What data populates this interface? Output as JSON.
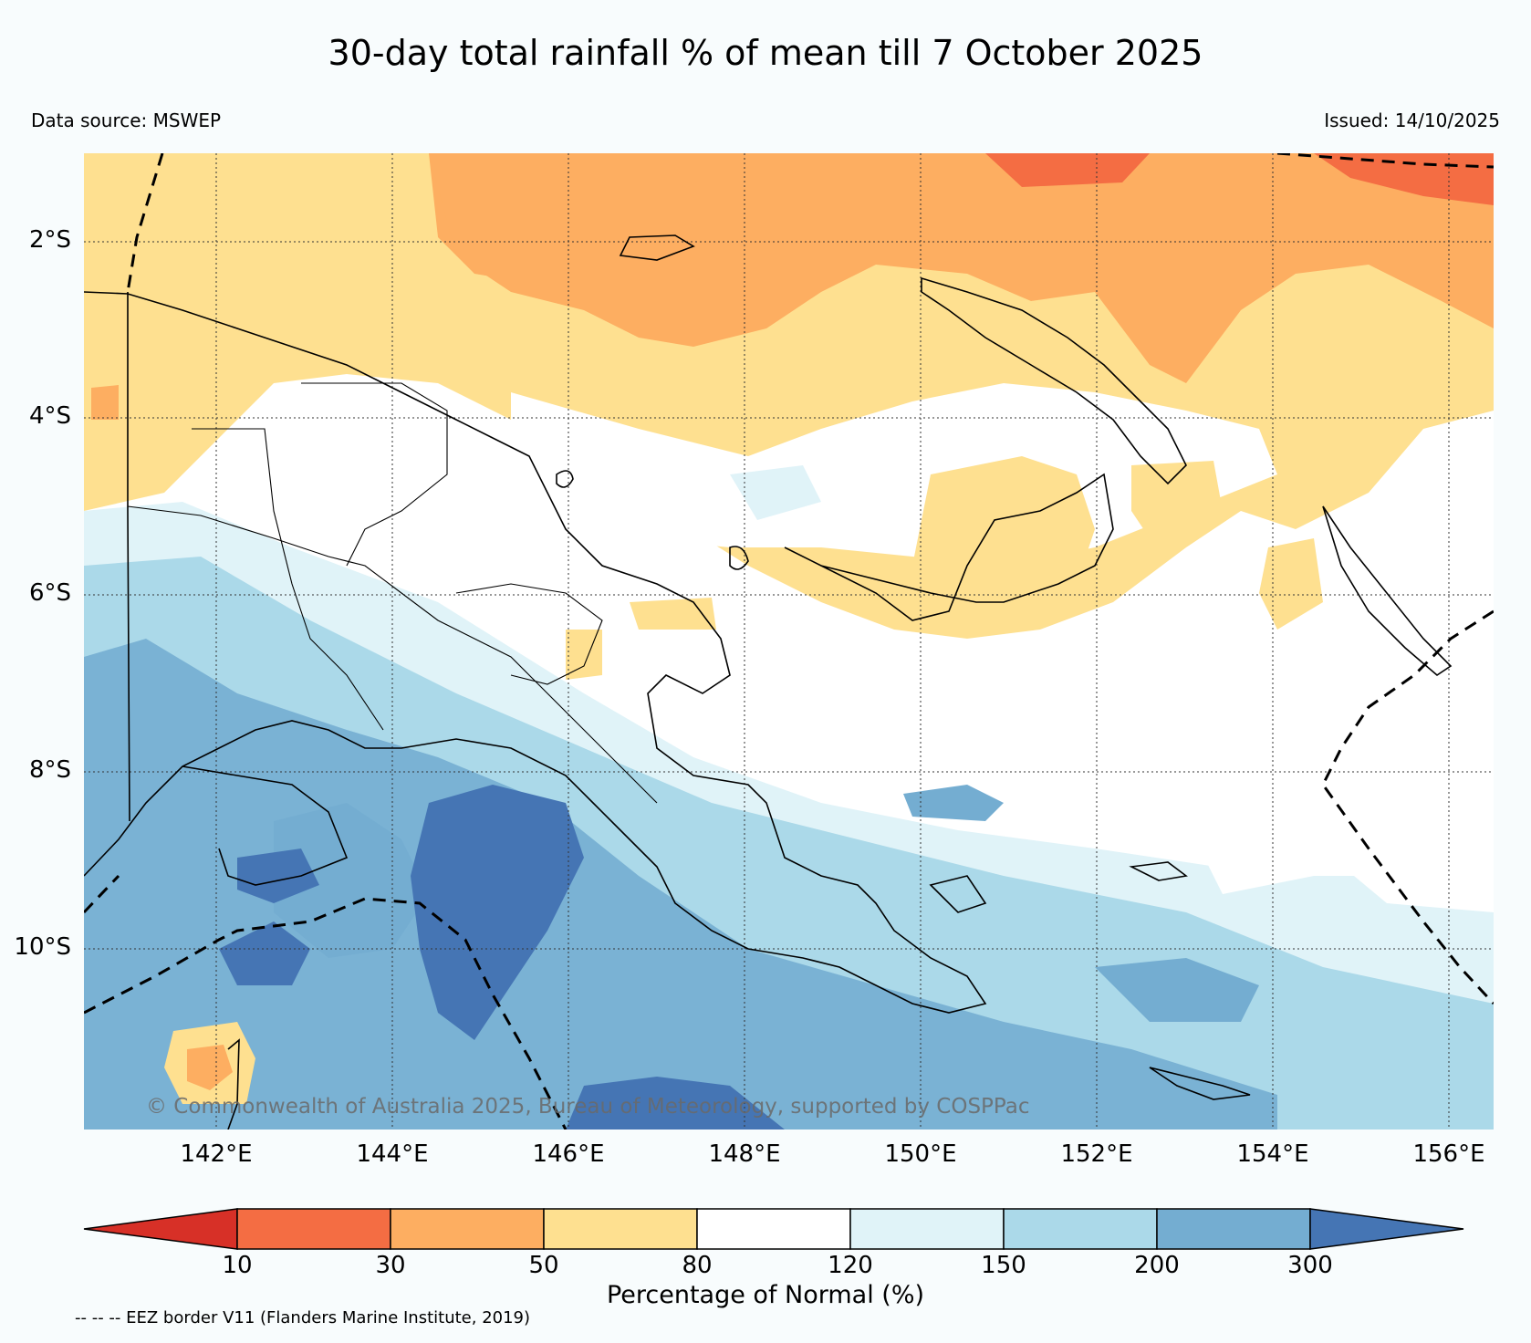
{
  "title": "30-day total rainfall % of mean till 7 October 2025",
  "data_source": "Data source: MSWEP",
  "issued": "Issued: 14/10/2025",
  "copyright": "© Commonwealth of Australia 2025, Bureau of Meteorology, supported by COSPPac",
  "lat_labels": [
    "2°S",
    "4°S",
    "6°S",
    "8°S",
    "10°S"
  ],
  "lon_labels": [
    "142°E",
    "144°E",
    "146°E",
    "148°E",
    "150°E",
    "152°E",
    "154°E",
    "156°E"
  ],
  "colorbar": {
    "ticks": [
      "10",
      "30",
      "50",
      "80",
      "120",
      "150",
      "200",
      "300"
    ],
    "label": "Percentage of Normal (%)",
    "colors": [
      "#d73027",
      "#f46d43",
      "#fdae61",
      "#fee090",
      "#ffffff",
      "#e0f3f8",
      "#abd9e9",
      "#74add1",
      "#4575b4"
    ]
  },
  "eez_note": "-- -- -- EEZ border V11 (Flanders Marine Institute, 2019)"
}
